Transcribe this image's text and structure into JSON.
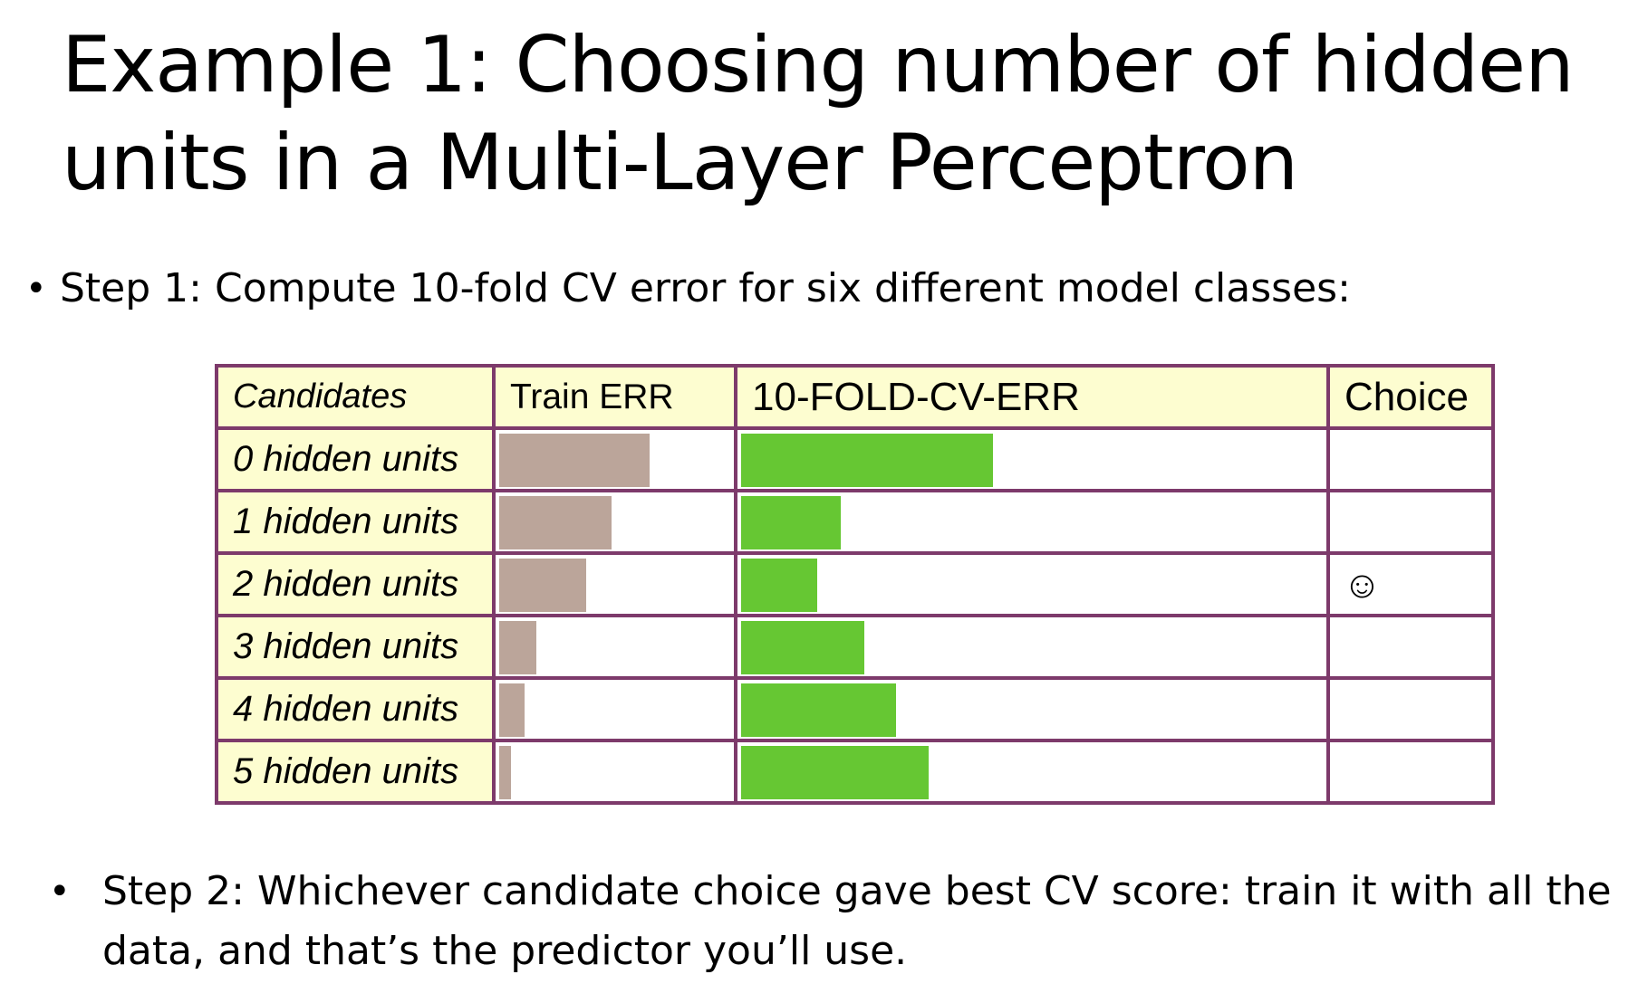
{
  "title": "Example 1: Choosing number of hidden units in a Multi-Layer Perceptron",
  "step1": "Step 1: Compute 10-fold CV error for six different model classes:",
  "step2": "Step 2: Whichever candidate choice gave best CV score: train it with all the data, and that’s the predictor you’ll use.",
  "colors": {
    "border": "#7d3a6b",
    "header_bg": "#fdfdd0",
    "train_bar": "#bba59a",
    "cv_bar": "#66c733"
  },
  "table": {
    "headers": {
      "candidates": "Candidates",
      "train": "Train ERR",
      "cv": "10-FOLD-CV-ERR",
      "choice": "Choice"
    },
    "rows": [
      {
        "label": "0 hidden units",
        "train_err": 0.64,
        "cv_err": 0.43,
        "choice": ""
      },
      {
        "label": "1 hidden units",
        "train_err": 0.48,
        "cv_err": 0.17,
        "choice": ""
      },
      {
        "label": "2 hidden units",
        "train_err": 0.37,
        "cv_err": 0.13,
        "choice": "☺"
      },
      {
        "label": "3 hidden units",
        "train_err": 0.16,
        "cv_err": 0.21,
        "choice": ""
      },
      {
        "label": "4 hidden units",
        "train_err": 0.11,
        "cv_err": 0.265,
        "choice": ""
      },
      {
        "label": "5 hidden units",
        "train_err": 0.05,
        "cv_err": 0.32,
        "choice": ""
      }
    ]
  }
}
